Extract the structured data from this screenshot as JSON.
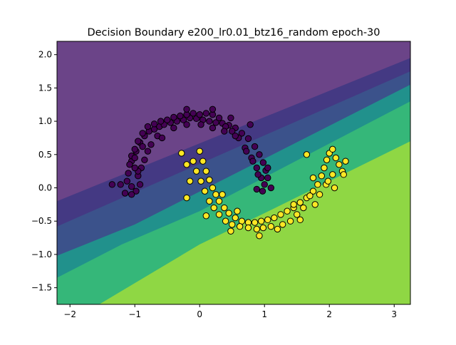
{
  "chart_data": {
    "type": "scatter",
    "title": "Decision Boundary e200_lr0.01_btz16_random epoch-30",
    "xlabel": "",
    "ylabel": "",
    "xlim": [
      -2.2,
      3.25
    ],
    "ylim": [
      -1.75,
      2.2
    ],
    "xticks": [
      -2,
      -1,
      0,
      1,
      2,
      3
    ],
    "xtick_labels": [
      "−2",
      "−1",
      "0",
      "1",
      "2",
      "3"
    ],
    "yticks": [
      -1.5,
      -1.0,
      -0.5,
      0.0,
      0.5,
      1.0,
      1.5,
      2.0
    ],
    "ytick_labels": [
      "−1.5",
      "−1.0",
      "−0.5",
      "0.0",
      "0.5",
      "1.0",
      "1.5",
      "2.0"
    ],
    "grid": false,
    "legend": "none",
    "background_regions": {
      "description_colors_low_to_high": [
        "#dce319",
        "#8fd744",
        "#35b779",
        "#21918c",
        "#3b528b",
        "#443983",
        "#6b4488"
      ],
      "boundaries": [
        {
          "points": [
            [
              -2.2,
              -0.2
            ],
            [
              3.25,
              1.95
            ]
          ]
        },
        {
          "points": [
            [
              -2.2,
              -0.58
            ],
            [
              3.25,
              1.75
            ]
          ]
        },
        {
          "points": [
            [
              -2.2,
              -1.02
            ],
            [
              -1.0,
              -0.55
            ],
            [
              3.25,
              1.55
            ]
          ]
        },
        {
          "points": [
            [
              -2.2,
              -1.35
            ],
            [
              -1.2,
              -0.85
            ],
            [
              0.0,
              -0.35
            ],
            [
              3.25,
              1.3
            ]
          ]
        },
        {
          "points": [
            [
              -1.55,
              -1.75
            ],
            [
              0.0,
              -0.85
            ],
            [
              1.0,
              -0.38
            ],
            [
              3.25,
              0.7
            ]
          ]
        }
      ]
    },
    "series": [
      {
        "class": 0,
        "color": "#440154",
        "points": [
          [
            -1.05,
            0.4
          ],
          [
            -0.98,
            0.55
          ],
          [
            -0.92,
            0.68
          ],
          [
            -0.85,
            0.78
          ],
          [
            -0.78,
            0.85
          ],
          [
            -0.7,
            0.88
          ],
          [
            -0.62,
            0.92
          ],
          [
            -0.55,
            0.95
          ],
          [
            -0.45,
            0.98
          ],
          [
            -0.35,
            1.0
          ],
          [
            -0.25,
            1.02
          ],
          [
            -0.15,
            1.05
          ],
          [
            -0.05,
            1.04
          ],
          [
            0.05,
            1.02
          ],
          [
            0.15,
            1.0
          ],
          [
            0.25,
            0.98
          ],
          [
            0.35,
            0.97
          ],
          [
            0.45,
            0.94
          ],
          [
            0.55,
            0.9
          ],
          [
            0.65,
            0.82
          ],
          [
            0.75,
            0.74
          ],
          [
            0.85,
            0.62
          ],
          [
            0.92,
            0.5
          ],
          [
            0.98,
            0.38
          ],
          [
            1.02,
            0.26
          ],
          [
            1.05,
            0.15
          ],
          [
            1.0,
            0.05
          ],
          [
            0.95,
            0.15
          ],
          [
            0.88,
            0.3
          ],
          [
            0.8,
            0.45
          ],
          [
            0.7,
            0.6
          ],
          [
            0.6,
            0.75
          ],
          [
            0.5,
            0.85
          ],
          [
            0.4,
            0.92
          ],
          [
            0.3,
            1.05
          ],
          [
            0.2,
            1.1
          ],
          [
            0.1,
            1.12
          ],
          [
            0.0,
            1.1
          ],
          [
            -0.1,
            1.12
          ],
          [
            -0.2,
            1.1
          ],
          [
            -0.3,
            1.08
          ],
          [
            -0.4,
            1.06
          ],
          [
            -0.5,
            1.02
          ],
          [
            -0.6,
            1.0
          ],
          [
            -0.7,
            0.96
          ],
          [
            -0.8,
            0.92
          ],
          [
            -0.88,
            0.82
          ],
          [
            -0.95,
            0.7
          ],
          [
            -1.0,
            0.58
          ],
          [
            -1.05,
            0.48
          ],
          [
            -1.08,
            0.35
          ],
          [
            -1.1,
            0.22
          ],
          [
            -1.12,
            0.1
          ],
          [
            -1.05,
            0.02
          ],
          [
            -0.98,
            -0.05
          ],
          [
            -0.92,
            0.05
          ],
          [
            -0.95,
            0.18
          ],
          [
            -0.9,
            0.3
          ],
          [
            -0.85,
            0.42
          ],
          [
            -0.8,
            0.55
          ],
          [
            -0.75,
            0.65
          ],
          [
            -1.22,
            0.05
          ],
          [
            -1.15,
            -0.08
          ],
          [
            -1.05,
            -0.1
          ],
          [
            -0.95,
            0.25
          ],
          [
            -0.88,
            0.62
          ],
          [
            -0.65,
            0.78
          ],
          [
            -0.4,
            0.9
          ],
          [
            -0.2,
            0.95
          ],
          [
            0.02,
            0.95
          ],
          [
            0.2,
            0.9
          ],
          [
            0.38,
            0.85
          ],
          [
            0.55,
            0.78
          ],
          [
            0.72,
            0.55
          ],
          [
            0.82,
            0.4
          ],
          [
            0.9,
            0.2
          ],
          [
            0.97,
            -0.05
          ],
          [
            1.05,
            0.3
          ],
          [
            0.78,
            0.95
          ],
          [
            0.48,
            1.05
          ],
          [
            -0.58,
            0.75
          ],
          [
            -1.0,
            0.45
          ],
          [
            -0.2,
            1.18
          ],
          [
            0.2,
            1.18
          ],
          [
            1.1,
            0.0
          ],
          [
            0.88,
            -0.02
          ],
          [
            -1.35,
            0.05
          ],
          [
            -1.0,
            0.3
          ]
        ]
      },
      {
        "class": 1,
        "color": "#fde725",
        "points": [
          [
            0.0,
            0.55
          ],
          [
            0.05,
            0.4
          ],
          [
            0.1,
            0.25
          ],
          [
            0.15,
            0.12
          ],
          [
            0.2,
            0.0
          ],
          [
            0.25,
            -0.1
          ],
          [
            0.3,
            -0.2
          ],
          [
            0.38,
            -0.3
          ],
          [
            0.45,
            -0.38
          ],
          [
            0.55,
            -0.45
          ],
          [
            0.65,
            -0.5
          ],
          [
            0.75,
            -0.52
          ],
          [
            0.85,
            -0.52
          ],
          [
            0.95,
            -0.5
          ],
          [
            1.05,
            -0.48
          ],
          [
            1.15,
            -0.45
          ],
          [
            1.25,
            -0.4
          ],
          [
            1.35,
            -0.35
          ],
          [
            1.45,
            -0.3
          ],
          [
            1.55,
            -0.22
          ],
          [
            1.65,
            -0.15
          ],
          [
            1.75,
            -0.05
          ],
          [
            1.82,
            0.05
          ],
          [
            1.88,
            0.18
          ],
          [
            1.92,
            0.3
          ],
          [
            1.96,
            0.42
          ],
          [
            2.0,
            0.52
          ],
          [
            2.05,
            0.58
          ],
          [
            2.1,
            0.45
          ],
          [
            2.15,
            0.35
          ],
          [
            2.2,
            0.25
          ],
          [
            2.25,
            0.4
          ],
          [
            2.05,
            0.2
          ],
          [
            1.95,
            0.05
          ],
          [
            1.85,
            -0.1
          ],
          [
            1.78,
            -0.25
          ],
          [
            1.6,
            -0.3
          ],
          [
            1.5,
            -0.4
          ],
          [
            1.4,
            -0.5
          ],
          [
            1.28,
            -0.55
          ],
          [
            1.1,
            -0.58
          ],
          [
            0.98,
            -0.6
          ],
          [
            0.88,
            -0.62
          ],
          [
            0.75,
            -0.6
          ],
          [
            0.62,
            -0.58
          ],
          [
            0.5,
            -0.55
          ],
          [
            0.4,
            -0.5
          ],
          [
            0.3,
            -0.4
          ],
          [
            0.22,
            -0.3
          ],
          [
            0.15,
            -0.2
          ],
          [
            0.08,
            -0.05
          ],
          [
            0.02,
            0.1
          ],
          [
            -0.05,
            0.25
          ],
          [
            -0.1,
            0.4
          ],
          [
            -0.2,
            0.35
          ],
          [
            -0.28,
            0.52
          ],
          [
            -0.15,
            0.1
          ],
          [
            -0.2,
            -0.15
          ],
          [
            0.1,
            -0.42
          ],
          [
            0.48,
            -0.65
          ],
          [
            0.92,
            -0.72
          ],
          [
            1.2,
            -0.62
          ],
          [
            1.55,
            -0.48
          ],
          [
            1.75,
            0.15
          ],
          [
            1.98,
            0.1
          ],
          [
            2.08,
            0.0
          ],
          [
            1.7,
            -0.12
          ],
          [
            0.35,
            -0.1
          ],
          [
            0.58,
            -0.35
          ],
          [
            1.45,
            -0.25
          ],
          [
            2.22,
            0.2
          ],
          [
            1.65,
            0.5
          ]
        ]
      }
    ]
  }
}
